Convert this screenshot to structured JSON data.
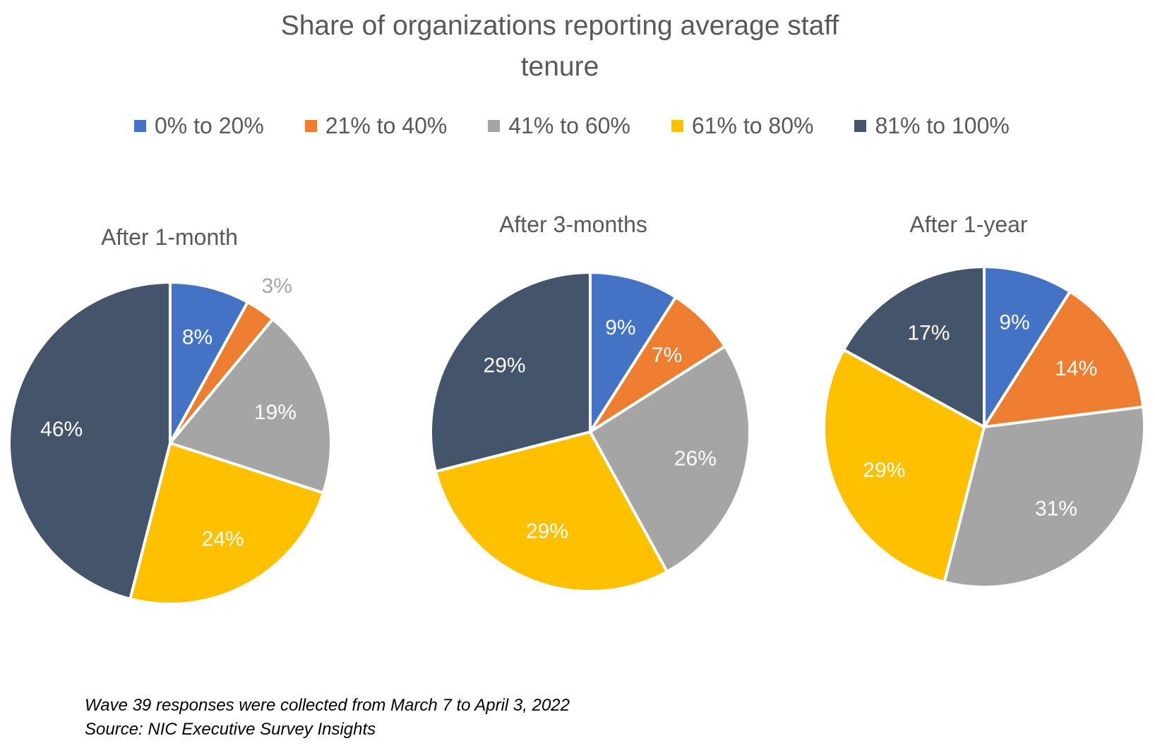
{
  "title": {
    "line1": "Share of organizations reporting average staff",
    "line2": "tenure"
  },
  "legend": [
    {
      "label": "0% to 20%",
      "color": "#4472C4"
    },
    {
      "label": "21% to 40%",
      "color": "#ED7D31"
    },
    {
      "label": "41% to 60%",
      "color": "#A5A5A5"
    },
    {
      "label": "61% to 80%",
      "color": "#FFC000"
    },
    {
      "label": "81% to 100%",
      "color": "#44546A"
    }
  ],
  "chart_data": [
    {
      "type": "pie",
      "title": "After 1-month",
      "categories": [
        "0% to 20%",
        "21% to 40%",
        "41% to 60%",
        "61% to 80%",
        "81% to 100%"
      ],
      "values": [
        8,
        3,
        19,
        24,
        46
      ],
      "labels": [
        "8%",
        "3%",
        "19%",
        "24%",
        "46%"
      ]
    },
    {
      "type": "pie",
      "title": "After 3-months",
      "categories": [
        "0% to 20%",
        "21% to 40%",
        "41% to 60%",
        "61% to 80%",
        "81% to 100%"
      ],
      "values": [
        9,
        7,
        26,
        29,
        29
      ],
      "labels": [
        "9%",
        "7%",
        "26%",
        "29%",
        "29%"
      ]
    },
    {
      "type": "pie",
      "title": "After 1-year",
      "categories": [
        "0% to 20%",
        "21% to 40%",
        "41% to 60%",
        "61% to 80%",
        "81% to 100%"
      ],
      "values": [
        9,
        14,
        31,
        29,
        17
      ],
      "labels": [
        "9%",
        "14%",
        "31%",
        "29%",
        "17%"
      ]
    }
  ],
  "footnotes": {
    "line1": "Wave 39 responses were collected from March 7 to April 3, 2022",
    "line2": "Source: NIC Executive Survey Insights"
  }
}
